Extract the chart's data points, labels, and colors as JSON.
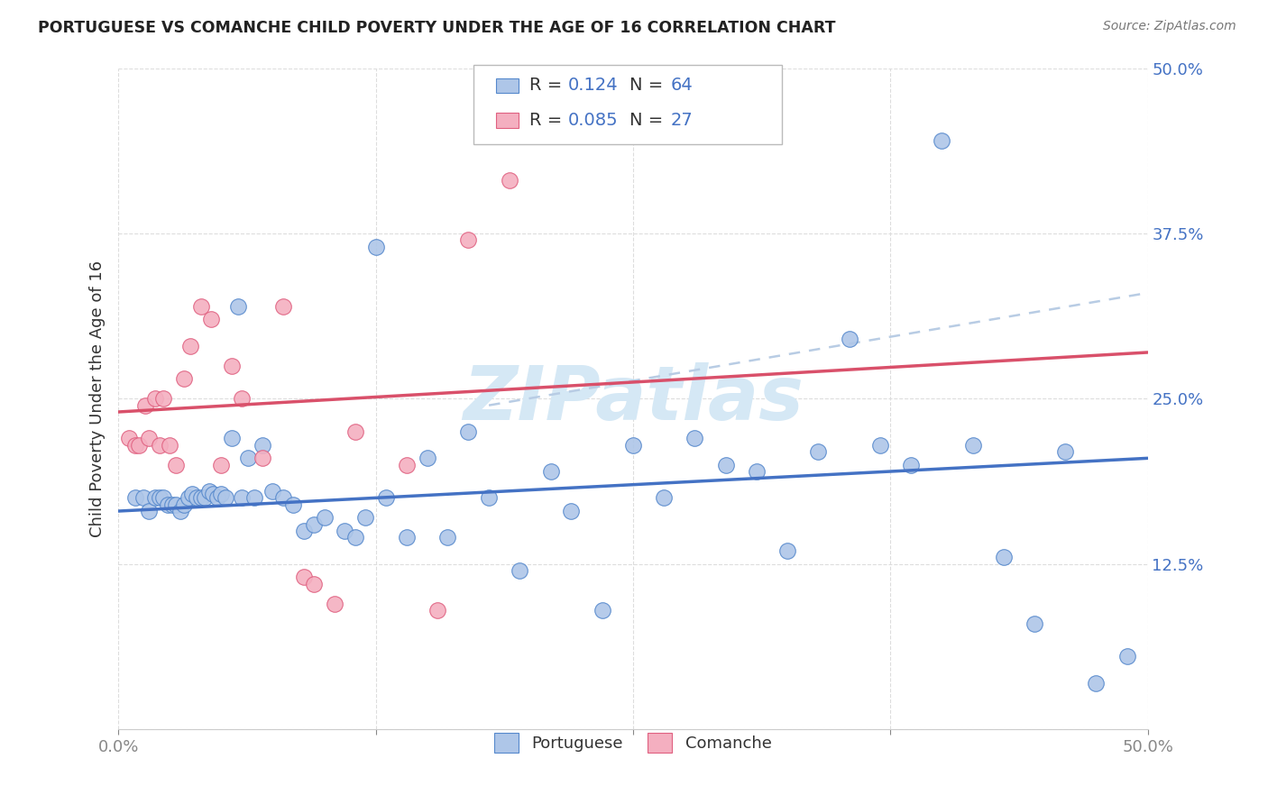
{
  "title": "PORTUGUESE VS COMANCHE CHILD POVERTY UNDER THE AGE OF 16 CORRELATION CHART",
  "source": "Source: ZipAtlas.com",
  "ylabel": "Child Poverty Under the Age of 16",
  "xlim": [
    0.0,
    0.5
  ],
  "ylim": [
    0.0,
    0.5
  ],
  "portuguese_R": "0.124",
  "portuguese_N": "64",
  "comanche_R": "0.085",
  "comanche_N": "27",
  "portuguese_color": "#aec6e8",
  "comanche_color": "#f4afc0",
  "portuguese_edge_color": "#5588cc",
  "comanche_edge_color": "#e06080",
  "portuguese_line_color": "#4472c4",
  "comanche_line_color": "#d9506a",
  "dashed_line_color": "#b8cce4",
  "watermark_color": "#d5e8f5",
  "legend_text_color": "#4472c4",
  "title_color": "#222222",
  "source_color": "#777777",
  "axis_label_color": "#333333",
  "tick_color": "#4472c4",
  "grid_color": "#dddddd",
  "portuguese_x": [
    0.008,
    0.012,
    0.015,
    0.018,
    0.02,
    0.022,
    0.024,
    0.026,
    0.028,
    0.03,
    0.032,
    0.034,
    0.036,
    0.038,
    0.04,
    0.042,
    0.044,
    0.046,
    0.048,
    0.05,
    0.052,
    0.055,
    0.058,
    0.06,
    0.063,
    0.066,
    0.07,
    0.075,
    0.08,
    0.085,
    0.09,
    0.095,
    0.1,
    0.11,
    0.115,
    0.12,
    0.125,
    0.13,
    0.14,
    0.15,
    0.16,
    0.17,
    0.18,
    0.195,
    0.21,
    0.22,
    0.235,
    0.25,
    0.265,
    0.28,
    0.295,
    0.31,
    0.325,
    0.34,
    0.355,
    0.37,
    0.385,
    0.4,
    0.415,
    0.43,
    0.445,
    0.46,
    0.475,
    0.49
  ],
  "portuguese_y": [
    0.175,
    0.175,
    0.165,
    0.175,
    0.175,
    0.175,
    0.17,
    0.17,
    0.17,
    0.165,
    0.17,
    0.175,
    0.178,
    0.175,
    0.175,
    0.175,
    0.18,
    0.178,
    0.175,
    0.178,
    0.175,
    0.22,
    0.32,
    0.175,
    0.205,
    0.175,
    0.215,
    0.18,
    0.175,
    0.17,
    0.15,
    0.155,
    0.16,
    0.15,
    0.145,
    0.16,
    0.365,
    0.175,
    0.145,
    0.205,
    0.145,
    0.225,
    0.175,
    0.12,
    0.195,
    0.165,
    0.09,
    0.215,
    0.175,
    0.22,
    0.2,
    0.195,
    0.135,
    0.21,
    0.295,
    0.215,
    0.2,
    0.445,
    0.215,
    0.13,
    0.08,
    0.21,
    0.035,
    0.055
  ],
  "comanche_x": [
    0.005,
    0.008,
    0.01,
    0.013,
    0.015,
    0.018,
    0.02,
    0.022,
    0.025,
    0.028,
    0.032,
    0.035,
    0.04,
    0.045,
    0.05,
    0.055,
    0.06,
    0.07,
    0.08,
    0.09,
    0.095,
    0.105,
    0.115,
    0.14,
    0.155,
    0.17,
    0.19
  ],
  "comanche_y": [
    0.22,
    0.215,
    0.215,
    0.245,
    0.22,
    0.25,
    0.215,
    0.25,
    0.215,
    0.2,
    0.265,
    0.29,
    0.32,
    0.31,
    0.2,
    0.275,
    0.25,
    0.205,
    0.32,
    0.115,
    0.11,
    0.095,
    0.225,
    0.2,
    0.09,
    0.37,
    0.415
  ],
  "port_line_x0": 0.0,
  "port_line_y0": 0.165,
  "port_line_x1": 0.5,
  "port_line_y1": 0.205,
  "com_line_x0": 0.0,
  "com_line_y0": 0.24,
  "com_line_x1": 0.5,
  "com_line_y1": 0.285,
  "dash_line_x0": 0.18,
  "dash_line_y0": 0.245,
  "dash_line_x1": 0.5,
  "dash_line_y1": 0.33
}
